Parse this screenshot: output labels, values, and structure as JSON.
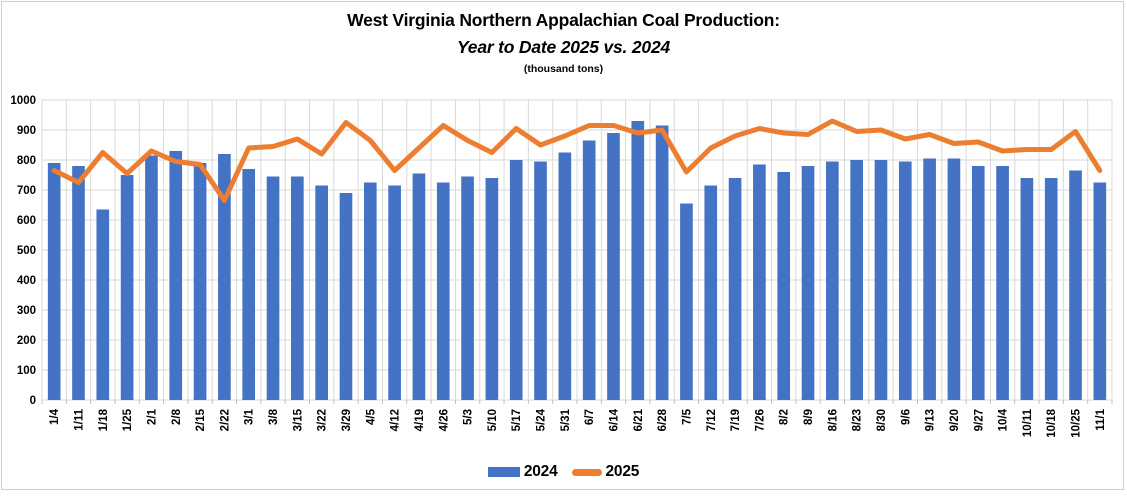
{
  "title": {
    "line1": "West Virginia Northern Appalachian Coal Production:",
    "line2": "Year to Date 2025 vs. 2024",
    "line3": "(thousand tons)"
  },
  "legend": {
    "items": [
      {
        "label": "2024",
        "swatch": "bar-swatch"
      },
      {
        "label": "2025",
        "swatch": "line-swatch"
      }
    ],
    "position": "bottom-center"
  },
  "colors": {
    "bar_2024": "#4472C4",
    "line_2025": "#ED7D31",
    "gridline": "#D9D9D9",
    "tick": "#BFBFBF",
    "text": "#000000",
    "background": "#FFFFFF"
  },
  "chart_data": {
    "type": "bar",
    "subtype": "bar+line combo",
    "title": "West Virginia Northern Appalachian Coal Production: Year to Date 2025 vs. 2024",
    "units_label": "(thousand tons)",
    "xlabel": "",
    "ylabel": "",
    "ylim": [
      0,
      1000
    ],
    "yticks": [
      0,
      100,
      200,
      300,
      400,
      500,
      600,
      700,
      800,
      900,
      1000
    ],
    "grid": "horizontal and vertical, light gray",
    "legend_position": "bottom",
    "x_tick_rotation": 90,
    "categories": [
      "1/4",
      "1/11",
      "1/18",
      "1/25",
      "2/1",
      "2/8",
      "2/15",
      "2/22",
      "3/1",
      "3/8",
      "3/15",
      "3/22",
      "3/29",
      "4/5",
      "4/12",
      "4/19",
      "4/26",
      "5/3",
      "5/10",
      "5/17",
      "5/24",
      "5/31",
      "6/7",
      "6/14",
      "6/21",
      "6/28",
      "7/5",
      "7/12",
      "7/19",
      "7/26",
      "8/2",
      "8/9",
      "8/16",
      "8/23",
      "8/30",
      "9/6",
      "9/13",
      "9/20",
      "9/27",
      "10/4",
      "10/11",
      "10/18",
      "10/25",
      "11/1"
    ],
    "series": [
      {
        "name": "2024",
        "type": "bar",
        "color": "#4472C4",
        "values": [
          790,
          780,
          635,
          750,
          815,
          830,
          790,
          820,
          770,
          745,
          745,
          715,
          690,
          725,
          715,
          755,
          725,
          745,
          740,
          800,
          795,
          825,
          865,
          890,
          930,
          915,
          655,
          715,
          740,
          785,
          760,
          780,
          795,
          800,
          800,
          795,
          805,
          805,
          780,
          780,
          740,
          740,
          765,
          725
        ]
      },
      {
        "name": "2025",
        "type": "line",
        "color": "#ED7D31",
        "stroke_width": 5,
        "values": [
          765,
          725,
          825,
          755,
          830,
          795,
          785,
          665,
          840,
          845,
          870,
          820,
          925,
          865,
          765,
          840,
          915,
          865,
          825,
          905,
          850,
          880,
          915,
          915,
          890,
          900,
          760,
          840,
          880,
          905,
          890,
          885,
          930,
          895,
          900,
          870,
          885,
          855,
          860,
          830,
          835,
          835,
          895,
          765
        ]
      }
    ]
  }
}
